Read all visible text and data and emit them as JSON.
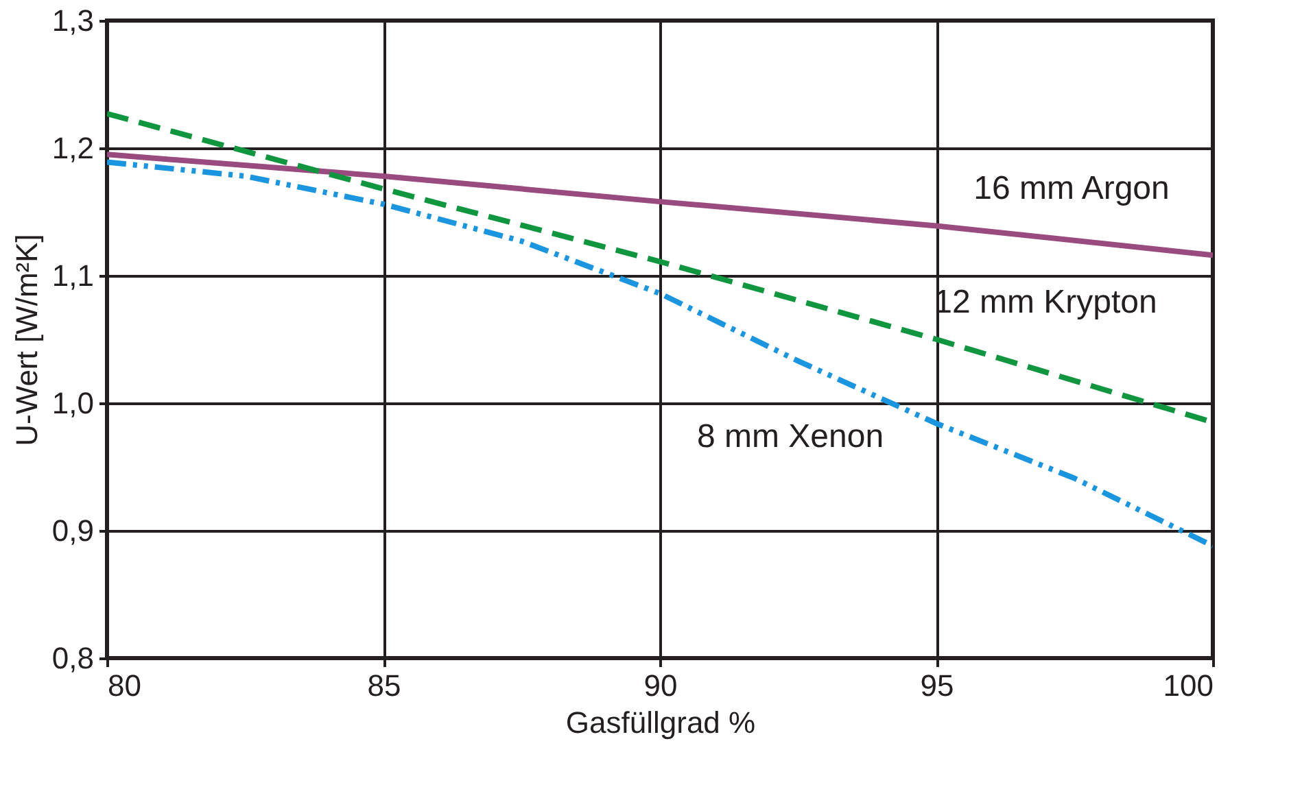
{
  "chart_data": {
    "type": "line",
    "xlabel": "Gasfüllgrad %",
    "ylabel": "U-Wert [W/m²K]",
    "x": [
      80,
      85,
      90,
      95,
      100
    ],
    "series": [
      {
        "name": "16 mm Argon",
        "color": "#994a7f",
        "line_style": "solid",
        "values": [
          1.195,
          1.178,
          1.158,
          1.139,
          1.116
        ]
      },
      {
        "name": "12 mm Krypton",
        "color": "#119640",
        "line_style": "dashed",
        "values": [
          1.227,
          1.168,
          1.111,
          1.05,
          0.985
        ]
      },
      {
        "name": "8 mm Xenon",
        "color": "#1a96e0",
        "line_style": "dotted",
        "x": [
          80,
          82.5,
          85,
          87.5,
          90,
          92.5,
          95,
          97.5,
          100
        ],
        "values": [
          1.189,
          1.178,
          1.156,
          1.127,
          1.086,
          1.033,
          0.984,
          0.941,
          0.888
        ]
      }
    ],
    "xlim": [
      80,
      100
    ],
    "xticks": [
      80,
      85,
      90,
      95,
      100
    ],
    "ylim": [
      0.8,
      1.3
    ],
    "yticks": [
      {
        "value": 0.8,
        "label": "0,8"
      },
      {
        "value": 0.9,
        "label": "0,9"
      },
      {
        "value": 1.0,
        "label": "1,0"
      },
      {
        "value": 1.1,
        "label": "1,1"
      },
      {
        "value": 1.2,
        "label": "1,2"
      },
      {
        "value": 1.3,
        "label": "1,3"
      }
    ],
    "grid": true,
    "legend": false,
    "marker": "none"
  }
}
